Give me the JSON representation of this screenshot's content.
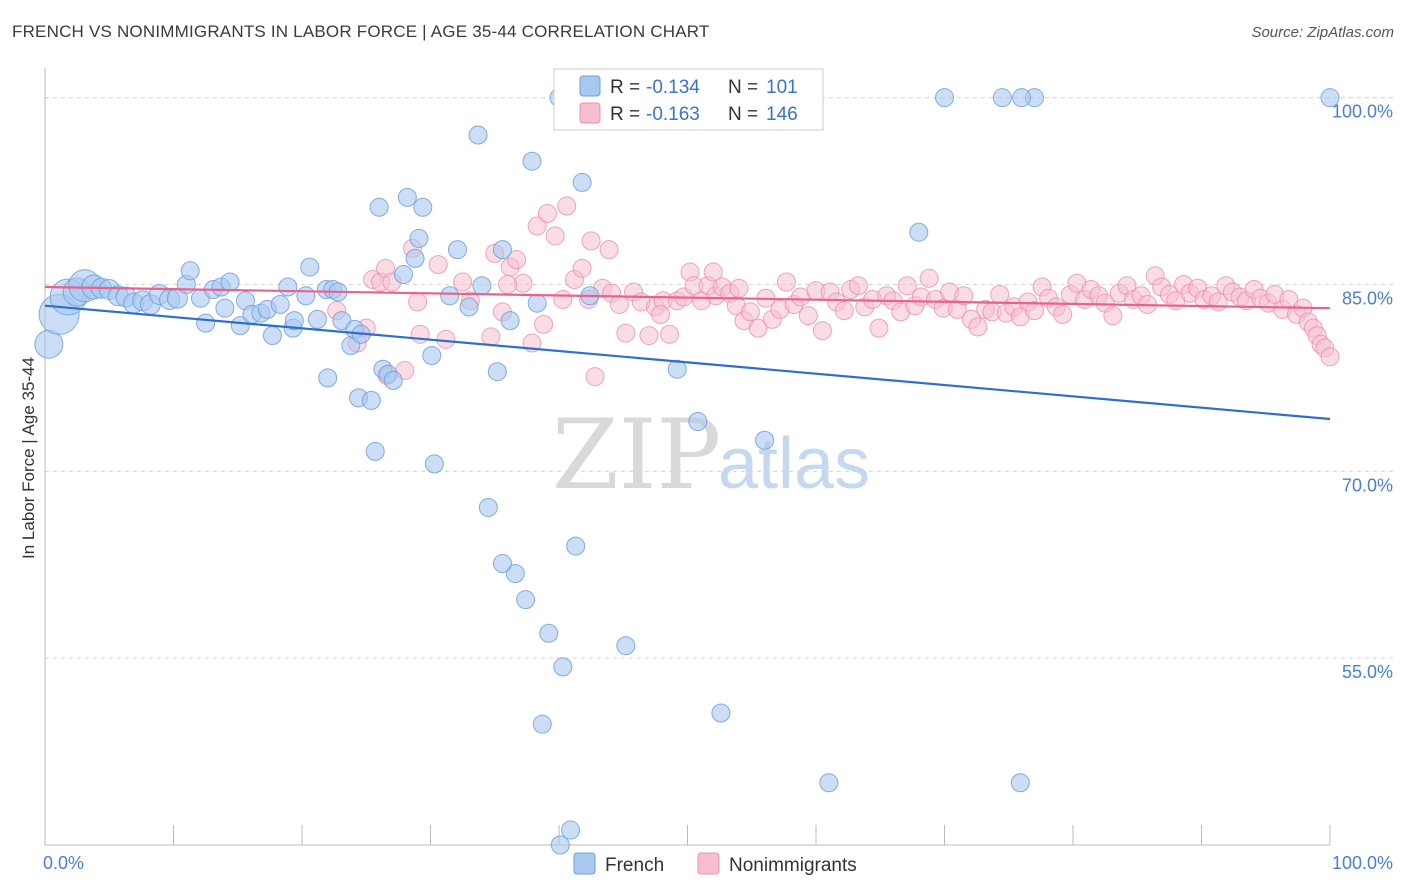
{
  "header": {
    "title": "FRENCH VS NONIMMIGRANTS IN LABOR FORCE | AGE 35-44 CORRELATION CHART",
    "source": "Source: ZipAtlas.com"
  },
  "watermark": {
    "zip": "ZIP",
    "atlas": "atlas"
  },
  "legend": {
    "rows": [
      {
        "r_label": "R = ",
        "r_value": "-0.134",
        "n_label": "N = ",
        "n_value": "101"
      },
      {
        "r_label": "R = ",
        "r_value": "-0.163",
        "n_label": "N = ",
        "n_value": "146"
      }
    ]
  },
  "colors": {
    "french_fill": "#a9c8f0",
    "french_stroke": "#6f9fdc",
    "french_line": "#2f6fcc",
    "nonimm_fill": "#f6bfd0",
    "nonimm_stroke": "#ec8fab",
    "nonimm_line": "#e8628d",
    "grid": "#d5d5d5",
    "tick_label": "#4a7fd0"
  },
  "chart_data": {
    "type": "scatter",
    "title": "FRENCH VS NONIMMIGRANTS IN LABOR FORCE | AGE 35-44 CORRELATION CHART",
    "xlabel": "",
    "ylabel": "In Labor Force | Age 35-44",
    "xlim": [
      0,
      100
    ],
    "ylim": [
      40,
      101.5
    ],
    "x_tick_labels": [
      "0.0%",
      "100.0%"
    ],
    "y_ticks": [
      55,
      70,
      85,
      100
    ],
    "y_tick_labels": [
      "55.0%",
      "70.0%",
      "85.0%",
      "100.0%"
    ],
    "grid": true,
    "legend_position": "bottom-center",
    "series": [
      {
        "name": "French",
        "R": -0.134,
        "N": 101,
        "trend": {
          "x": [
            0,
            100
          ],
          "y": [
            83.3,
            74.2
          ]
        },
        "points": [
          [
            0.3,
            80.2,
            14
          ],
          [
            1.1,
            82.6,
            20
          ],
          [
            1.8,
            84.0,
            18
          ],
          [
            2.5,
            84.4,
            14
          ],
          [
            3.1,
            84.9,
            16
          ],
          [
            3.8,
            84.8,
            12
          ],
          [
            4.4,
            84.7,
            10
          ],
          [
            5.0,
            84.6,
            10
          ],
          [
            5.7,
            84.1,
            10
          ],
          [
            6.3,
            84.0,
            10
          ],
          [
            6.9,
            83.5,
            10
          ],
          [
            7.6,
            83.7,
            10
          ],
          [
            8.2,
            83.4,
            10
          ],
          [
            8.9,
            84.2,
            10
          ],
          [
            9.7,
            83.8,
            10
          ],
          [
            10.3,
            83.9,
            10
          ],
          [
            11.0,
            85.0,
            9
          ],
          [
            11.3,
            86.1,
            9
          ],
          [
            12.1,
            83.9,
            9
          ],
          [
            12.5,
            81.9,
            9
          ],
          [
            13.1,
            84.6,
            9
          ],
          [
            13.7,
            84.8,
            9
          ],
          [
            14.4,
            85.2,
            9
          ],
          [
            14.0,
            83.1,
            9
          ],
          [
            15.2,
            81.7,
            9
          ],
          [
            15.6,
            83.7,
            9
          ],
          [
            16.1,
            82.6,
            9
          ],
          [
            16.8,
            82.7,
            9
          ],
          [
            17.3,
            83.0,
            9
          ],
          [
            17.7,
            80.9,
            9
          ],
          [
            18.3,
            83.4,
            9
          ],
          [
            18.9,
            84.8,
            9
          ],
          [
            19.3,
            81.5,
            9
          ],
          [
            19.4,
            82.1,
            9
          ],
          [
            20.3,
            84.1,
            9
          ],
          [
            20.6,
            86.4,
            9
          ],
          [
            21.2,
            82.2,
            9
          ],
          [
            21.9,
            84.6,
            9
          ],
          [
            22.0,
            77.5,
            9
          ],
          [
            22.4,
            84.6,
            9
          ],
          [
            22.8,
            84.4,
            9
          ],
          [
            23.1,
            82.1,
            9
          ],
          [
            23.8,
            80.1,
            9
          ],
          [
            24.1,
            81.4,
            9
          ],
          [
            24.6,
            81.0,
            9
          ],
          [
            24.4,
            75.9,
            9
          ],
          [
            25.4,
            75.7,
            9
          ],
          [
            25.7,
            71.6,
            9
          ],
          [
            26.0,
            91.2,
            9
          ],
          [
            26.3,
            78.2,
            9
          ],
          [
            26.7,
            77.8,
            9
          ],
          [
            27.1,
            77.3,
            9
          ],
          [
            27.9,
            85.8,
            9
          ],
          [
            28.2,
            92.0,
            9
          ],
          [
            28.8,
            87.1,
            9
          ],
          [
            29.1,
            88.7,
            9
          ],
          [
            29.4,
            91.2,
            9
          ],
          [
            30.1,
            79.3,
            9
          ],
          [
            30.3,
            70.6,
            9
          ],
          [
            31.5,
            84.1,
            9
          ],
          [
            32.1,
            87.8,
            9
          ],
          [
            33.0,
            83.2,
            9
          ],
          [
            33.7,
            97.0,
            9
          ],
          [
            34.0,
            84.9,
            9
          ],
          [
            34.5,
            67.1,
            9
          ],
          [
            35.2,
            78.0,
            9
          ],
          [
            35.6,
            87.8,
            9
          ],
          [
            36.2,
            82.1,
            9
          ],
          [
            36.6,
            61.8,
            9
          ],
          [
            35.6,
            62.6,
            9
          ],
          [
            37.4,
            59.7,
            9
          ],
          [
            37.9,
            94.9,
            9
          ],
          [
            38.3,
            83.5,
            9
          ],
          [
            38.7,
            49.7,
            9
          ],
          [
            39.2,
            57.0,
            9
          ],
          [
            40.0,
            100.0,
            9
          ],
          [
            40.3,
            54.3,
            9
          ],
          [
            40.9,
            41.2,
            9
          ],
          [
            41.3,
            64.0,
            9
          ],
          [
            41.8,
            93.2,
            9
          ],
          [
            42.4,
            84.1,
            9
          ],
          [
            43.0,
            100.0,
            9
          ],
          [
            45.0,
            100.0,
            9
          ],
          [
            45.2,
            56.0,
            9
          ],
          [
            47.0,
            100.0,
            9
          ],
          [
            49.2,
            78.2,
            9
          ],
          [
            50.8,
            74.0,
            9
          ],
          [
            50.0,
            100.0,
            9
          ],
          [
            52.6,
            50.6,
            9
          ],
          [
            56.0,
            72.5,
            9
          ],
          [
            57.6,
            100.0,
            9
          ],
          [
            57.0,
            100.0,
            9
          ],
          [
            61.0,
            45.0,
            9
          ],
          [
            68.0,
            89.2,
            9
          ],
          [
            70.0,
            100.0,
            9
          ],
          [
            75.9,
            45.0,
            9
          ],
          [
            74.5,
            100.0,
            9
          ],
          [
            77.0,
            100.0,
            9
          ],
          [
            76.0,
            100.0,
            9
          ],
          [
            100.0,
            100.0,
            9
          ],
          [
            40.1,
            40.0,
            9
          ]
        ]
      },
      {
        "name": "Nonimmigrants",
        "R": -0.163,
        "N": 146,
        "trend": {
          "x": [
            0,
            100
          ],
          "y": [
            84.8,
            83.1
          ]
        },
        "points": [
          [
            22.7,
            82.9
          ],
          [
            24.3,
            80.3
          ],
          [
            25.0,
            81.5
          ],
          [
            25.5,
            85.4
          ],
          [
            26.1,
            85.2
          ],
          [
            26.6,
            77.7
          ],
          [
            26.5,
            86.3
          ],
          [
            27.0,
            85.2
          ],
          [
            28.0,
            78.1
          ],
          [
            28.6,
            87.9
          ],
          [
            29.0,
            83.6
          ],
          [
            29.2,
            81.0
          ],
          [
            30.6,
            86.6
          ],
          [
            31.2,
            80.6
          ],
          [
            32.5,
            85.2
          ],
          [
            33.1,
            83.7
          ],
          [
            34.7,
            80.8
          ],
          [
            35.0,
            87.5
          ],
          [
            35.6,
            82.8
          ],
          [
            36.2,
            86.4
          ],
          [
            36.7,
            87.0
          ],
          [
            37.2,
            85.1
          ],
          [
            37.9,
            80.3
          ],
          [
            38.3,
            89.7
          ],
          [
            39.1,
            90.7
          ],
          [
            39.7,
            88.9
          ],
          [
            40.3,
            83.8
          ],
          [
            40.6,
            91.3
          ],
          [
            41.2,
            85.4
          ],
          [
            41.8,
            86.3
          ],
          [
            42.3,
            83.8
          ],
          [
            42.8,
            77.6
          ],
          [
            42.5,
            88.5
          ],
          [
            43.4,
            84.7
          ],
          [
            44.1,
            84.3
          ],
          [
            44.7,
            83.4
          ],
          [
            45.2,
            81.1
          ],
          [
            45.8,
            84.4
          ],
          [
            46.4,
            83.6
          ],
          [
            47.0,
            80.9
          ],
          [
            47.5,
            83.2
          ],
          [
            48.1,
            83.7
          ],
          [
            48.6,
            81.0
          ],
          [
            49.2,
            83.7
          ],
          [
            49.7,
            84.0
          ],
          [
            50.2,
            86.0
          ],
          [
            50.5,
            84.9
          ],
          [
            51.1,
            83.7
          ],
          [
            51.6,
            84.9
          ],
          [
            52.2,
            84.1
          ],
          [
            52.7,
            84.8
          ],
          [
            53.3,
            84.3
          ],
          [
            53.8,
            83.3
          ],
          [
            54.4,
            82.1
          ],
          [
            54.9,
            82.8
          ],
          [
            55.5,
            81.5
          ],
          [
            56.1,
            83.9
          ],
          [
            56.6,
            82.2
          ],
          [
            57.2,
            83.0
          ],
          [
            57.7,
            85.2
          ],
          [
            58.3,
            83.4
          ],
          [
            58.8,
            84.0
          ],
          [
            59.4,
            82.5
          ],
          [
            60.0,
            84.5
          ],
          [
            60.5,
            81.3
          ],
          [
            61.1,
            84.4
          ],
          [
            61.6,
            83.6
          ],
          [
            62.2,
            82.9
          ],
          [
            62.7,
            84.6
          ],
          [
            63.3,
            84.9
          ],
          [
            63.8,
            83.2
          ],
          [
            64.4,
            83.8
          ],
          [
            64.9,
            81.5
          ],
          [
            65.5,
            84.1
          ],
          [
            66.0,
            83.7
          ],
          [
            66.6,
            82.8
          ],
          [
            67.1,
            84.9
          ],
          [
            67.7,
            83.3
          ],
          [
            68.2,
            84.0
          ],
          [
            68.8,
            85.5
          ],
          [
            69.3,
            83.8
          ],
          [
            69.9,
            83.1
          ],
          [
            70.4,
            84.4
          ],
          [
            71.0,
            83.0
          ],
          [
            71.5,
            84.1
          ],
          [
            72.1,
            82.2
          ],
          [
            72.6,
            81.6
          ],
          [
            73.2,
            83.0
          ],
          [
            73.7,
            82.8
          ],
          [
            74.3,
            84.2
          ],
          [
            74.8,
            82.7
          ],
          [
            75.4,
            83.2
          ],
          [
            75.9,
            82.4
          ],
          [
            76.5,
            83.6
          ],
          [
            77.0,
            82.9
          ],
          [
            77.6,
            84.8
          ],
          [
            78.1,
            83.9
          ],
          [
            78.7,
            83.2
          ],
          [
            79.2,
            82.6
          ],
          [
            79.8,
            84.2
          ],
          [
            80.3,
            85.1
          ],
          [
            80.9,
            83.8
          ],
          [
            81.4,
            84.6
          ],
          [
            82.0,
            84.1
          ],
          [
            82.5,
            83.5
          ],
          [
            83.1,
            82.5
          ],
          [
            83.6,
            84.3
          ],
          [
            84.2,
            84.9
          ],
          [
            84.7,
            83.8
          ],
          [
            85.3,
            84.1
          ],
          [
            85.8,
            83.4
          ],
          [
            86.4,
            85.7
          ],
          [
            86.9,
            84.8
          ],
          [
            87.5,
            84.2
          ],
          [
            88.0,
            83.7
          ],
          [
            88.6,
            85.0
          ],
          [
            89.1,
            84.3
          ],
          [
            89.7,
            84.7
          ],
          [
            90.2,
            83.8
          ],
          [
            90.8,
            84.1
          ],
          [
            91.3,
            83.6
          ],
          [
            91.9,
            84.9
          ],
          [
            92.4,
            84.4
          ],
          [
            93.0,
            84.0
          ],
          [
            93.5,
            83.7
          ],
          [
            94.1,
            84.6
          ],
          [
            94.6,
            83.9
          ],
          [
            95.2,
            83.5
          ],
          [
            95.7,
            84.2
          ],
          [
            96.3,
            83.0
          ],
          [
            96.8,
            83.8
          ],
          [
            97.4,
            82.6
          ],
          [
            97.9,
            83.1
          ],
          [
            98.3,
            82.0
          ],
          [
            98.7,
            81.5
          ],
          [
            99.0,
            80.9
          ],
          [
            99.3,
            80.2
          ],
          [
            99.6,
            79.9
          ],
          [
            100.0,
            79.2
          ],
          [
            36.0,
            85.0
          ],
          [
            38.8,
            81.8
          ],
          [
            43.9,
            87.8
          ],
          [
            47.9,
            82.6
          ],
          [
            52.0,
            86.0
          ],
          [
            54.0,
            84.7
          ]
        ]
      }
    ]
  },
  "bottom_legend": {
    "items": [
      "French",
      "Nonimmigrants"
    ]
  }
}
